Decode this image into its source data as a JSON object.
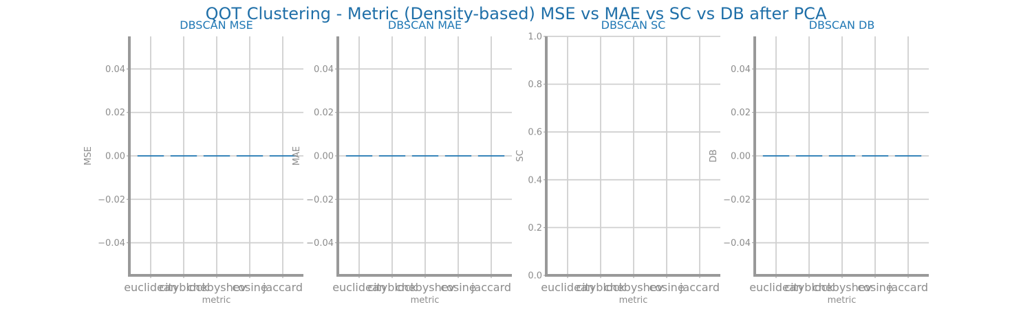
{
  "suptitle": "QOT Clustering - Metric (Density-based) MSE vs MAE vs SC vs DB after PCA",
  "colors": {
    "line": "#1f77b4",
    "grid": "#d0d0d0",
    "spine": "#999999",
    "text": "#8c8c8c",
    "title": "#1f77b4"
  },
  "chart_data": [
    {
      "type": "line",
      "title": "DBSCAN MSE",
      "xlabel": "metric",
      "ylabel": "MSE",
      "categories": [
        "euclidean",
        "cityblock",
        "chebyshev",
        "cosine",
        "jaccard"
      ],
      "series": [
        {
          "values": [
            0,
            0,
            0,
            0,
            0
          ]
        }
      ],
      "ylim": [
        -0.055,
        0.055
      ],
      "yticks": [
        -0.04,
        -0.02,
        0.0,
        0.02,
        0.04
      ],
      "ytick_labels": [
        "−0.04",
        "−0.02",
        "0.00",
        "0.02",
        "0.04"
      ],
      "grid": true,
      "line_style": "dashed"
    },
    {
      "type": "line",
      "title": "DBSCAN MAE",
      "xlabel": "metric",
      "ylabel": "MAE",
      "categories": [
        "euclidean",
        "cityblock",
        "chebyshev",
        "cosine",
        "jaccard"
      ],
      "series": [
        {
          "values": [
            0,
            0,
            0,
            0,
            0
          ]
        }
      ],
      "ylim": [
        -0.055,
        0.055
      ],
      "yticks": [
        -0.04,
        -0.02,
        0.0,
        0.02,
        0.04
      ],
      "ytick_labels": [
        "−0.04",
        "−0.02",
        "0.00",
        "0.02",
        "0.04"
      ],
      "grid": true,
      "line_style": "dashed"
    },
    {
      "type": "line",
      "title": "DBSCAN SC",
      "xlabel": "metric",
      "ylabel": "SC",
      "categories": [
        "euclidean",
        "cityblock",
        "chebyshev",
        "cosine",
        "jaccard"
      ],
      "series": [],
      "ylim": [
        0.0,
        1.0
      ],
      "yticks": [
        0.0,
        0.2,
        0.4,
        0.6,
        0.8,
        1.0
      ],
      "ytick_labels": [
        "0.0",
        "0.2",
        "0.4",
        "0.6",
        "0.8",
        "1.0"
      ],
      "grid": true,
      "line_style": "dashed"
    },
    {
      "type": "line",
      "title": "DBSCAN DB",
      "xlabel": "metric",
      "ylabel": "DB",
      "categories": [
        "euclidean",
        "cityblock",
        "chebyshev",
        "cosine",
        "jaccard"
      ],
      "series": [
        {
          "values": [
            0,
            0,
            0,
            0,
            0
          ]
        }
      ],
      "ylim": [
        -0.055,
        0.055
      ],
      "yticks": [
        -0.04,
        -0.02,
        0.0,
        0.02,
        0.04
      ],
      "ytick_labels": [
        "−0.04",
        "−0.02",
        "0.00",
        "0.02",
        "0.04"
      ],
      "grid": true,
      "line_style": "dashed"
    }
  ]
}
